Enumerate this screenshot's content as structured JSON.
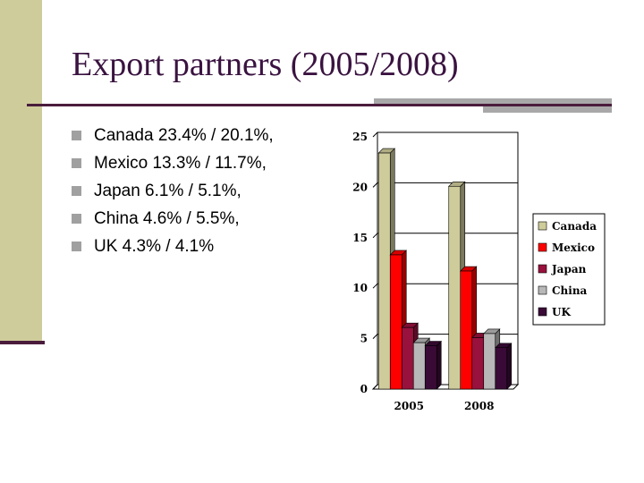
{
  "slide": {
    "title": "Export partners (2005/2008)",
    "bullets": [
      "Canada 23.4% / 20.1%,",
      "Mexico 13.3% / 11.7%,",
      "Japan 6.1% / 5.1%,",
      "China 4.6% / 5.5%,",
      "UK 4.3% / 4.1%"
    ]
  },
  "colors": {
    "accent": "#4a1c3c",
    "sidebar": "#cfcc9c",
    "bullet": "#a0a0a0"
  },
  "chart_data": {
    "type": "bar",
    "categories": [
      "2005",
      "2008"
    ],
    "series": [
      {
        "name": "Canada",
        "values": [
          23.4,
          20.1
        ],
        "color": "#cfcc9c"
      },
      {
        "name": "Mexico",
        "values": [
          13.3,
          11.7
        ],
        "color": "#ff0000"
      },
      {
        "name": "Japan",
        "values": [
          6.1,
          5.1
        ],
        "color": "#99113d"
      },
      {
        "name": "China",
        "values": [
          4.6,
          5.5
        ],
        "color": "#b8b8b8"
      },
      {
        "name": "UK",
        "values": [
          4.3,
          4.1
        ],
        "color": "#3a0a36"
      }
    ],
    "ylim": [
      0,
      25
    ],
    "yticks": [
      "0",
      "5",
      "10",
      "15",
      "20",
      "25"
    ],
    "grid": true,
    "legend": "right",
    "title": "",
    "xlabel": "",
    "ylabel": ""
  }
}
